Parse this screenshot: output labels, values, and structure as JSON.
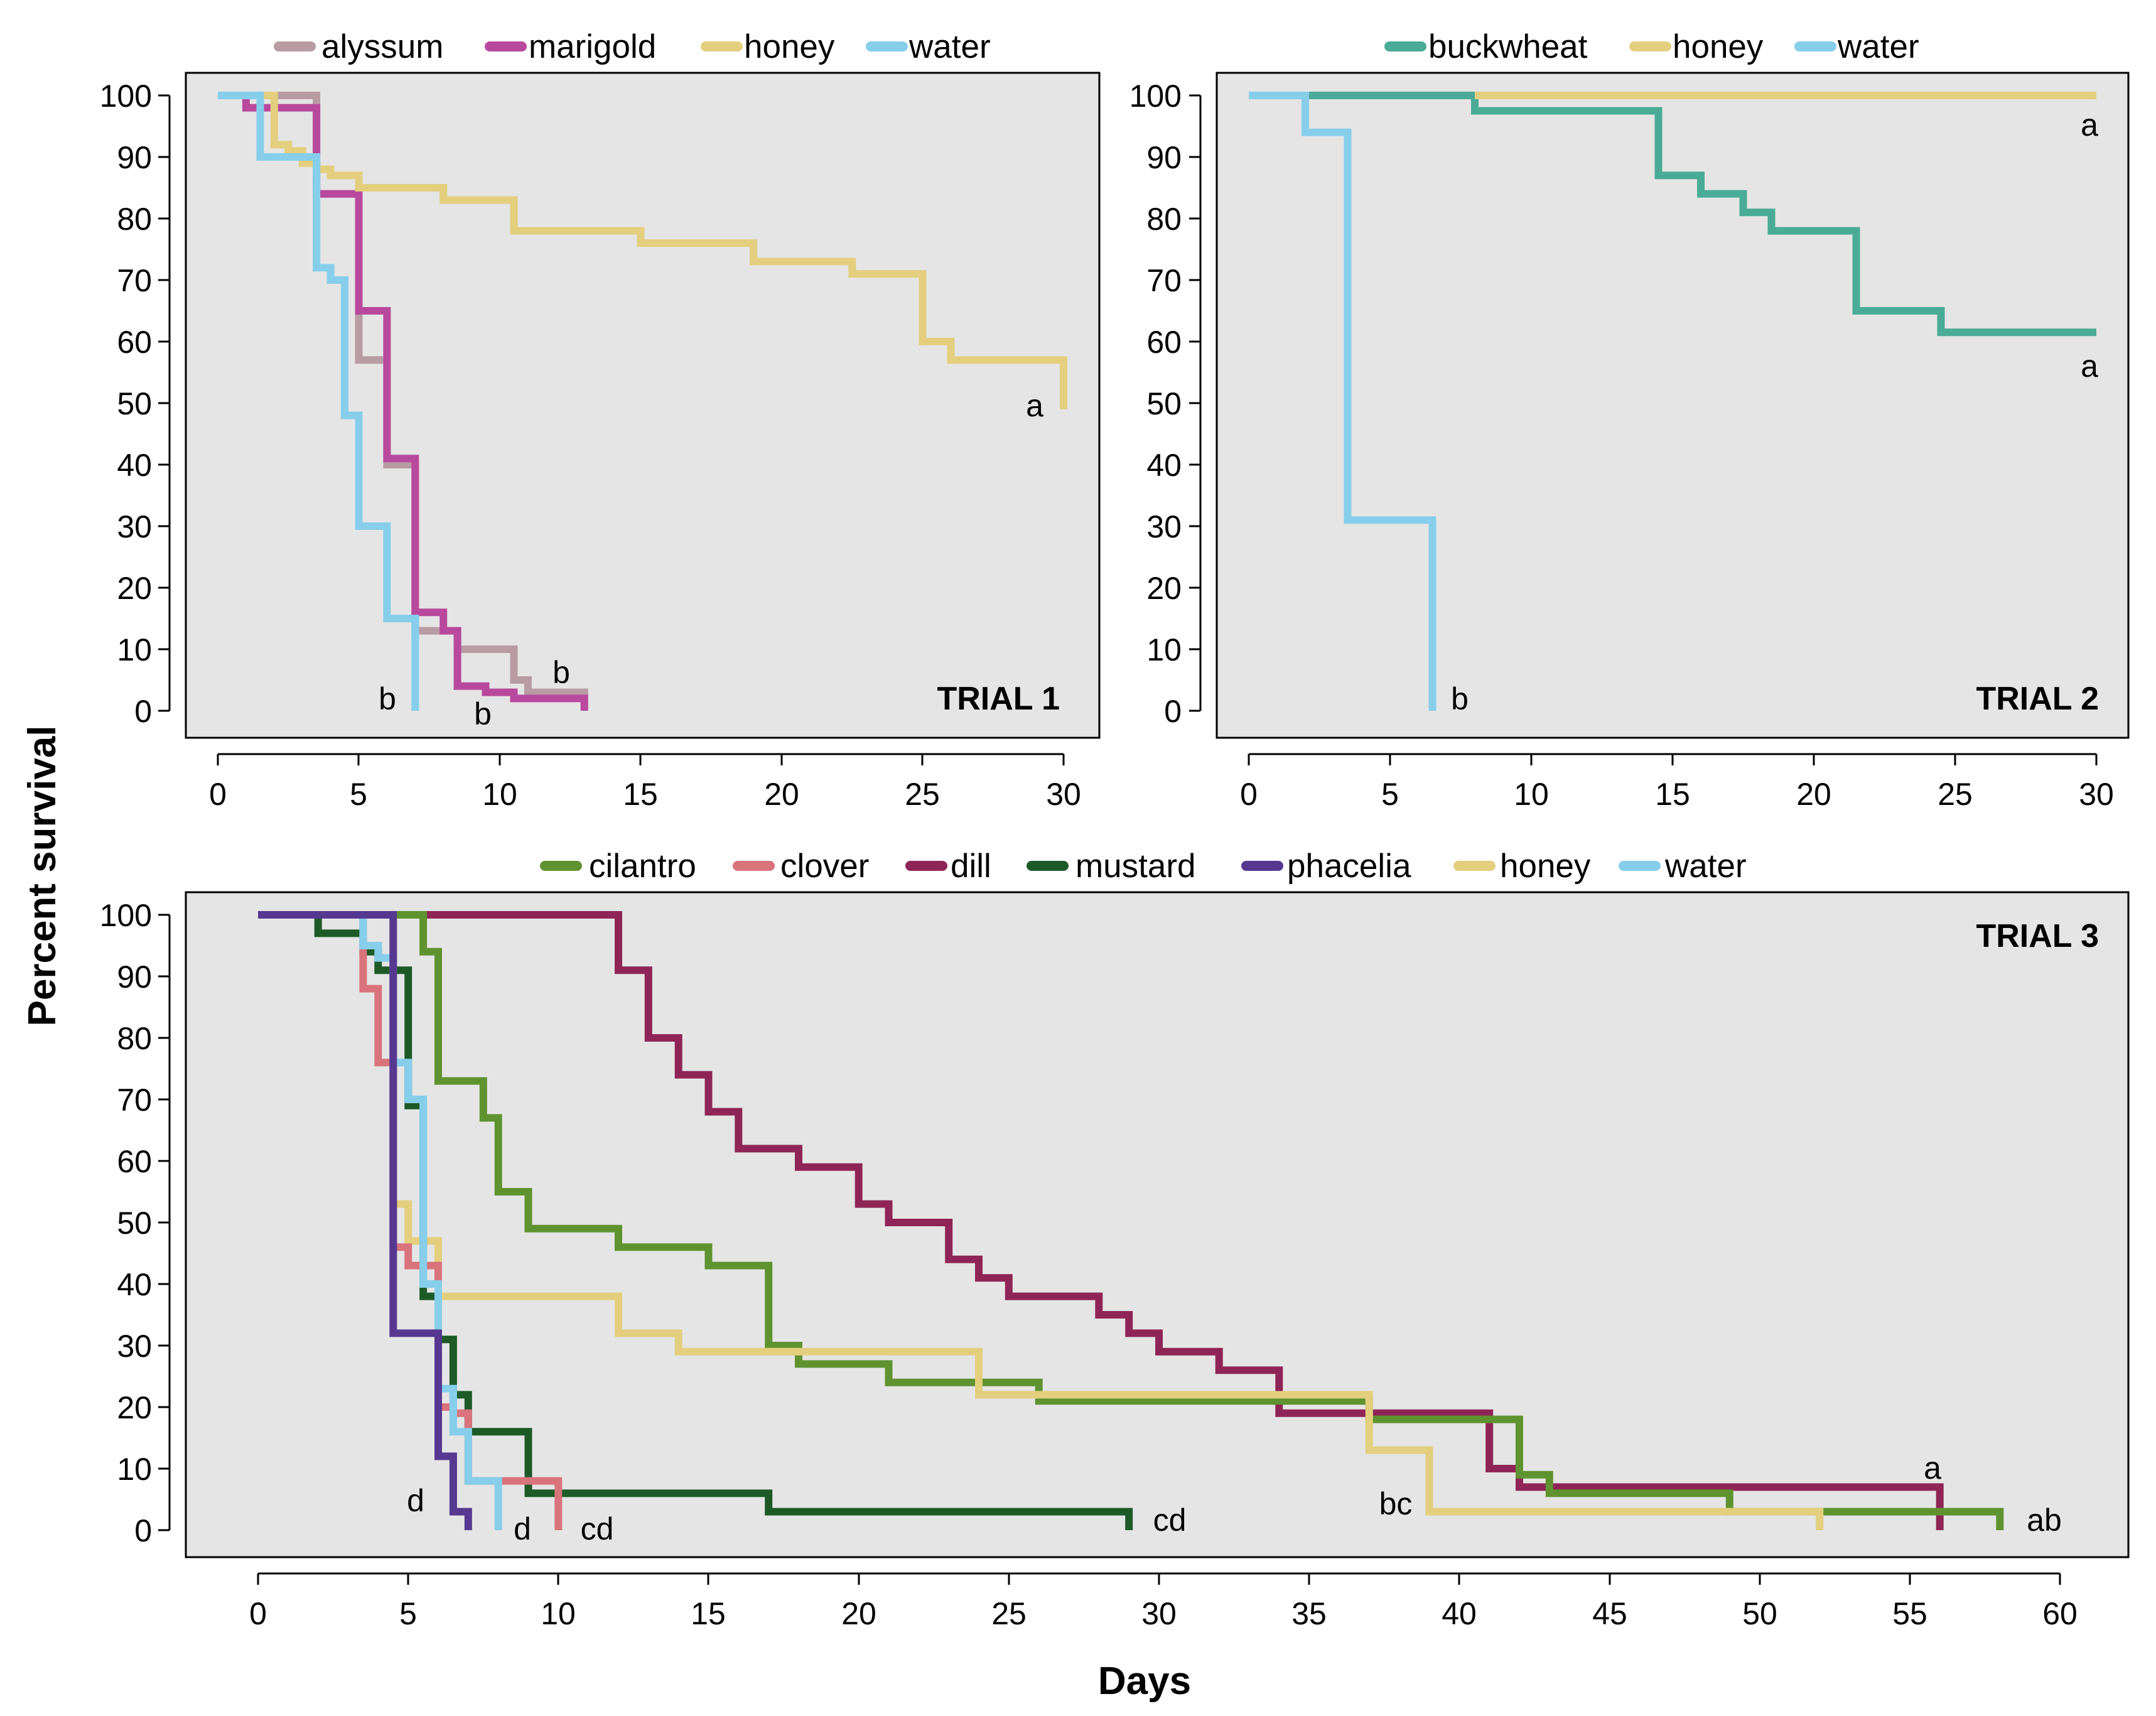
{
  "colors": {
    "panel_bg": "#e5e5e5",
    "alyssum": "#b89ba3",
    "marigold": "#b8499d",
    "honey": "#e3cf7e",
    "water": "#87ceeb",
    "buckwheat": "#4aab96",
    "cilantro": "#5f9330",
    "clover": "#d9737c",
    "dill": "#8f2556",
    "mustard": "#1e5a28",
    "phacelia": "#563890"
  },
  "ylabel": "Percent survival",
  "xlabel": "Days",
  "chart_data": [
    {
      "type": "line",
      "step": true,
      "title": "TRIAL 1",
      "xlim": [
        0,
        30
      ],
      "ylim": [
        0,
        100
      ],
      "x_ticks": [
        "0",
        "5",
        "10",
        "15",
        "20",
        "25",
        "30"
      ],
      "y_ticks": [
        "0",
        "10",
        "20",
        "30",
        "40",
        "50",
        "60",
        "70",
        "80",
        "90",
        "100"
      ],
      "series": [
        {
          "name": "alyssum",
          "color_key": "alyssum",
          "x": [
            0,
            3.5,
            5,
            6,
            7,
            8.5,
            10.5,
            11,
            13,
            13
          ],
          "y": [
            100,
            84,
            57,
            40,
            13,
            10,
            5,
            3,
            3,
            0
          ]
        },
        {
          "name": "marigold",
          "color_key": "marigold",
          "x": [
            0,
            1,
            3.5,
            5,
            6,
            7,
            8,
            8.5,
            9.5,
            10.5,
            13,
            13
          ],
          "y": [
            100,
            98,
            84,
            65,
            41,
            16,
            13,
            4,
            3,
            2,
            2,
            0
          ]
        },
        {
          "name": "honey",
          "color_key": "honey",
          "x": [
            0,
            2,
            2.5,
            3,
            3.5,
            4,
            5,
            6,
            8,
            10.5,
            15,
            19,
            22.5,
            25,
            26,
            30,
            30
          ],
          "y": [
            100,
            92,
            91,
            89,
            88,
            87,
            85,
            85,
            83,
            78,
            76,
            73,
            71,
            60,
            57,
            57,
            49
          ]
        },
        {
          "name": "water",
          "color_key": "water",
          "x": [
            0,
            1.5,
            3.5,
            4,
            4.5,
            5,
            6,
            7,
            7
          ],
          "y": [
            100,
            90,
            72,
            70,
            48,
            30,
            15,
            15,
            0
          ]
        }
      ],
      "annotations": [
        {
          "text": "a",
          "series": "honey"
        },
        {
          "text": "b",
          "series": "water"
        },
        {
          "text": "b",
          "series": "marigold"
        },
        {
          "text": "b",
          "series": "alyssum"
        }
      ]
    },
    {
      "type": "line",
      "step": true,
      "title": "TRIAL 2",
      "xlim": [
        0,
        30
      ],
      "ylim": [
        0,
        100
      ],
      "x_ticks": [
        "0",
        "5",
        "10",
        "15",
        "20",
        "25",
        "30"
      ],
      "y_ticks": [
        "0",
        "10",
        "20",
        "30",
        "40",
        "50",
        "60",
        "70",
        "80",
        "90",
        "100"
      ],
      "series": [
        {
          "name": "buckwheat",
          "color_key": "buckwheat",
          "x": [
            0,
            8,
            14.5,
            16,
            17.5,
            18.5,
            21.5,
            24.5,
            30
          ],
          "y": [
            100,
            97.5,
            87,
            84,
            81,
            78,
            65,
            61.5,
            61.5
          ]
        },
        {
          "name": "honey",
          "color_key": "honey",
          "x": [
            8,
            30
          ],
          "y": [
            100,
            100
          ]
        },
        {
          "name": "water",
          "color_key": "water",
          "x": [
            0,
            2,
            3.5,
            6.5,
            6.5
          ],
          "y": [
            100,
            94,
            31,
            31,
            0
          ]
        }
      ],
      "annotations": [
        {
          "text": "a",
          "series": "honey"
        },
        {
          "text": "a",
          "series": "buckwheat"
        },
        {
          "text": "b",
          "series": "water"
        }
      ]
    },
    {
      "type": "line",
      "step": true,
      "title": "TRIAL 3",
      "xlim": [
        0,
        60
      ],
      "ylim": [
        0,
        100
      ],
      "x_ticks": [
        "0",
        "5",
        "10",
        "15",
        "20",
        "25",
        "30",
        "35",
        "40",
        "45",
        "50",
        "55",
        "60"
      ],
      "y_ticks": [
        "0",
        "10",
        "20",
        "30",
        "40",
        "50",
        "60",
        "70",
        "80",
        "90",
        "100"
      ],
      "series": [
        {
          "name": "dill",
          "color_key": "dill",
          "x": [
            0,
            12,
            13,
            14,
            15,
            16,
            18,
            20,
            21,
            23,
            24,
            25,
            28,
            29,
            30,
            32,
            34,
            41,
            42,
            43,
            56,
            56
          ],
          "y": [
            100,
            91,
            80,
            74,
            68,
            62,
            59,
            53,
            50,
            44,
            41,
            38,
            35,
            32,
            29,
            26,
            19,
            10,
            7,
            7,
            7,
            0
          ]
        },
        {
          "name": "cilantro",
          "color_key": "cilantro",
          "x": [
            0,
            5.5,
            6,
            7.5,
            8,
            9,
            12,
            15,
            17,
            18,
            21,
            26,
            37,
            42,
            43,
            49,
            58,
            58
          ],
          "y": [
            100,
            94,
            73,
            67,
            55,
            49,
            46,
            43,
            30,
            27,
            24,
            21,
            18,
            9,
            6,
            3,
            3,
            0
          ]
        },
        {
          "name": "mustard",
          "color_key": "mustard",
          "x": [
            0,
            2,
            3.5,
            4,
            5,
            5.5,
            6,
            6.5,
            7,
            9,
            17,
            29,
            29
          ],
          "y": [
            100,
            97,
            94,
            91,
            69,
            38,
            31,
            22,
            16,
            6,
            3,
            3,
            0
          ]
        },
        {
          "name": "clover",
          "color_key": "clover",
          "x": [
            0,
            3.5,
            4,
            4.5,
            5,
            6,
            6.5,
            7,
            9,
            10,
            10
          ],
          "y": [
            100,
            88,
            76,
            46,
            43,
            20,
            19,
            8,
            8,
            8,
            0
          ]
        },
        {
          "name": "phacelia",
          "color_key": "phacelia",
          "x": [
            0,
            4.5,
            5.5,
            6,
            6.5,
            7,
            7
          ],
          "y": [
            100,
            32,
            32,
            12,
            3,
            3,
            0
          ]
        },
        {
          "name": "honey",
          "color_key": "honey",
          "x": [
            0,
            4.5,
            5,
            6,
            12,
            14,
            24,
            37,
            39,
            52,
            52
          ],
          "y": [
            100,
            53,
            47,
            38,
            32,
            29,
            22,
            13,
            3,
            3,
            0
          ]
        },
        {
          "name": "water",
          "color_key": "water",
          "x": [
            0,
            3.5,
            4,
            4.5,
            5,
            5.5,
            6,
            6.5,
            7,
            8,
            8
          ],
          "y": [
            100,
            95,
            93,
            76,
            70,
            40,
            23,
            16,
            8,
            8,
            0
          ]
        }
      ],
      "annotations": [
        {
          "text": "a",
          "series": "dill"
        },
        {
          "text": "ab",
          "series": "cilantro"
        },
        {
          "text": "bc",
          "series": "honey"
        },
        {
          "text": "cd",
          "series": "mustard"
        },
        {
          "text": "cd",
          "series": "clover"
        },
        {
          "text": "d",
          "series": "water"
        },
        {
          "text": "d",
          "series": "phacelia"
        }
      ]
    }
  ]
}
